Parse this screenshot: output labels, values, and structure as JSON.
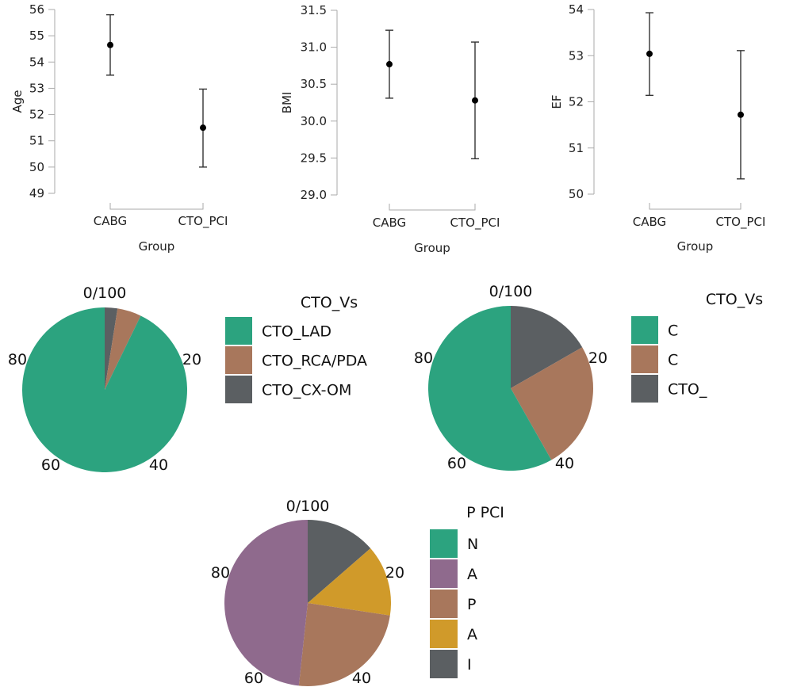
{
  "chart_data": [
    {
      "type": "errorbar",
      "ylabel": "Age",
      "xlabel": "Group",
      "categories": [
        "CABG",
        "CTO_PCI"
      ],
      "means": [
        54.65,
        51.5
      ],
      "lower": [
        53.5,
        50.0
      ],
      "upper": [
        55.8,
        52.97
      ],
      "ylim": [
        49,
        56
      ],
      "yticks": [
        "49",
        "50",
        "51",
        "52",
        "53",
        "54",
        "55",
        "56"
      ],
      "ytick_values": [
        49,
        50,
        51,
        52,
        53,
        54,
        55,
        56
      ]
    },
    {
      "type": "errorbar",
      "ylabel": "BMI",
      "xlabel": "Group",
      "categories": [
        "CABG",
        "CTO_PCI"
      ],
      "means": [
        30.77,
        30.28
      ],
      "lower": [
        30.31,
        29.49
      ],
      "upper": [
        31.23,
        31.07
      ],
      "ylim": [
        29.0,
        31.5
      ],
      "yticks": [
        "29.0",
        "29.5",
        "30.0",
        "30.5",
        "31.0",
        "31.5"
      ],
      "ytick_values": [
        29.0,
        29.5,
        30.0,
        30.5,
        31.0,
        31.5
      ]
    },
    {
      "type": "errorbar",
      "ylabel": "EF",
      "xlabel": "Group",
      "categories": [
        "CABG",
        "CTO_PCI"
      ],
      "means": [
        53.04,
        51.72
      ],
      "lower": [
        52.14,
        50.33
      ],
      "upper": [
        53.93,
        53.11
      ],
      "ylim": [
        50,
        54
      ],
      "yticks": [
        "50",
        "51",
        "52",
        "53",
        "54"
      ],
      "ytick_values": [
        50,
        51,
        52,
        53,
        54
      ]
    },
    {
      "type": "pie",
      "legend_title": "CTO_Vs",
      "legend_title_visible": "CTO_Vs",
      "angle_labels": [
        "0/100",
        "20",
        "40",
        "60",
        "80"
      ],
      "slices": [
        {
          "label": "CTO_LAD",
          "visible_label": "CTO_LAD",
          "value": 92.8,
          "color": "#2ca37f"
        },
        {
          "label": "CTO_RCA/PDA",
          "visible_label": "CTO_RCA/PDA",
          "value": 4.7,
          "color": "#a8775c"
        },
        {
          "label": "CTO_CX-OM",
          "visible_label": "CTO_CX-OM",
          "value": 2.5,
          "color": "#5b5f62"
        }
      ],
      "draw_order": [
        2,
        1,
        0
      ]
    },
    {
      "type": "pie",
      "legend_title": "CTO_Vs",
      "legend_title_visible": "CTO_Vs",
      "angle_labels": [
        "0/100",
        "20",
        "40",
        "60",
        "80"
      ],
      "slices": [
        {
          "label": "CTO_LAD",
          "visible_label": "C",
          "value": 58.2,
          "color": "#2ca37f"
        },
        {
          "label": "CTO_RCA/PDA",
          "visible_label": "C",
          "value": 25.1,
          "color": "#a8775c"
        },
        {
          "label": "CTO_CX-OM",
          "visible_label": "CTO_",
          "value": 16.7,
          "color": "#5b5f62"
        }
      ],
      "draw_order": [
        2,
        1,
        0
      ]
    },
    {
      "type": "pie",
      "legend_title": "P... PCI",
      "legend_title_visible": "P        PCI",
      "angle_labels": [
        "0/100",
        "20",
        "40",
        "60",
        "80"
      ],
      "slices": [
        {
          "label": "N",
          "visible_label": "N",
          "value": 0,
          "color": "#2ca37f"
        },
        {
          "label": "A",
          "visible_label": "A",
          "value": 48.3,
          "color": "#8f6a8d"
        },
        {
          "label": "P",
          "visible_label": "P",
          "value": 24.3,
          "color": "#a8775c"
        },
        {
          "label": "A",
          "visible_label": "A",
          "value": 13.8,
          "color": "#d09a2a"
        },
        {
          "label": "I",
          "visible_label": "I",
          "value": 13.6,
          "color": "#5b5f62"
        }
      ],
      "draw_order": [
        4,
        3,
        2,
        1,
        0
      ]
    }
  ]
}
